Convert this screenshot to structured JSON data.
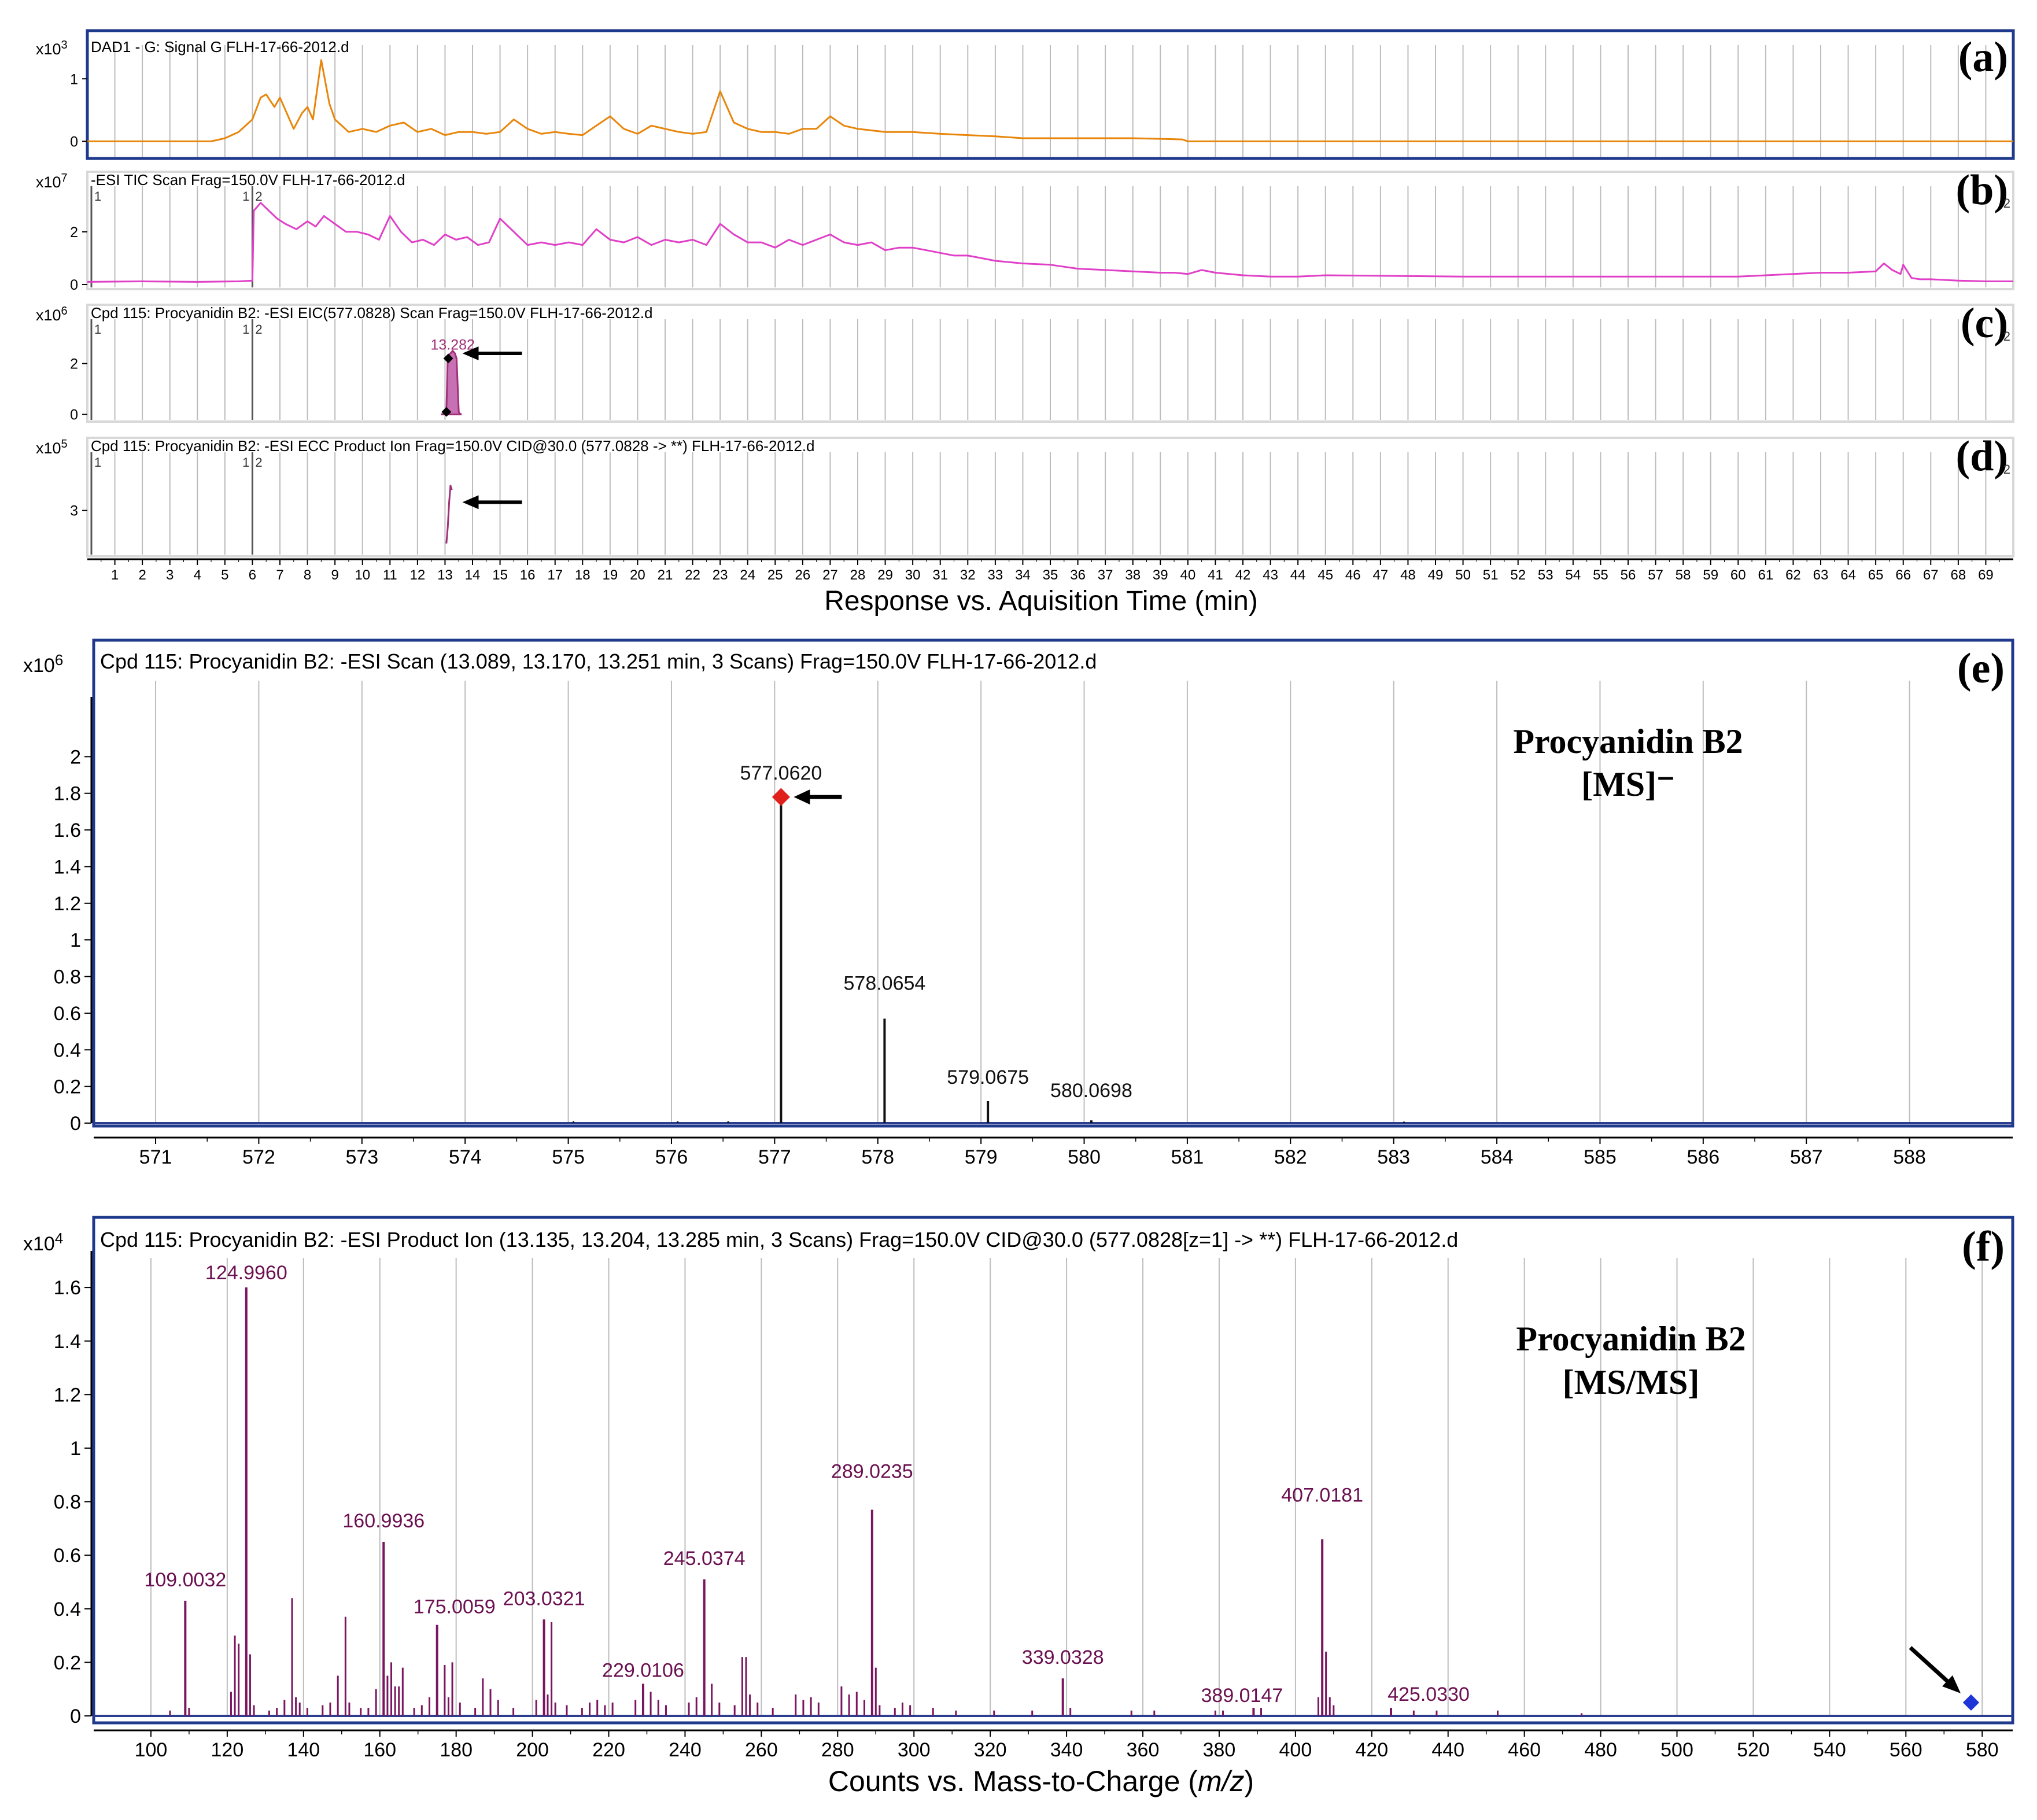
{
  "colors": {
    "frame": "#1f3a8c",
    "grid": "#bdbdbd",
    "dad": "#e8860c",
    "tic": "#e040c8",
    "eic": "#a0307a",
    "ms": "#111111",
    "msms": "#7a1660",
    "label_ms": "#111111",
    "label_msms": "#6b1050",
    "marker_red": "#e0201a",
    "marker_blue": "#1f35d8",
    "arrow": "#000000"
  },
  "top_panels": {
    "xlabel": "Response vs. Aquisition Time (min)",
    "xticks": [
      1,
      2,
      3,
      4,
      5,
      6,
      7,
      8,
      9,
      10,
      11,
      12,
      13,
      14,
      15,
      16,
      17,
      18,
      19,
      20,
      21,
      22,
      23,
      24,
      25,
      26,
      27,
      28,
      29,
      30,
      31,
      32,
      33,
      34,
      35,
      36,
      37,
      38,
      39,
      40,
      41,
      42,
      43,
      44,
      45,
      46,
      47,
      48,
      49,
      50,
      51,
      52,
      53,
      54,
      55,
      56,
      57,
      58,
      59,
      60,
      61,
      62,
      63,
      64,
      65,
      66,
      67,
      68,
      69
    ],
    "xlim": [
      0,
      70
    ]
  },
  "chart_data": [
    {
      "panel": "(a)",
      "type": "line",
      "title": "DAD1 - G: Signal G FLH-17-66-2012.d",
      "scale_base": "x10",
      "scale_exp": "3",
      "yticks": [
        "1",
        "0"
      ],
      "ylim": [
        -0.2,
        1.4
      ],
      "x": [
        0,
        4.5,
        5,
        5.5,
        6,
        6.3,
        6.5,
        6.8,
        7,
        7.2,
        7.5,
        7.8,
        8,
        8.2,
        8.5,
        8.8,
        9,
        9.5,
        10,
        10.5,
        11,
        11.5,
        12,
        12.5,
        13,
        13.5,
        14,
        14.5,
        15,
        15.5,
        16,
        16.5,
        17,
        17.5,
        18,
        18.5,
        19,
        19.5,
        20,
        20.5,
        21,
        21.5,
        22,
        22.5,
        23,
        23.5,
        24,
        24.5,
        25,
        25.5,
        26,
        26.5,
        27,
        27.5,
        28,
        29,
        30,
        31,
        32,
        33,
        34,
        35,
        36,
        37,
        38,
        39,
        39.8,
        40,
        45,
        50,
        60,
        70
      ],
      "values": [
        0,
        0,
        0.05,
        0.15,
        0.35,
        0.7,
        0.75,
        0.55,
        0.7,
        0.5,
        0.2,
        0.45,
        0.55,
        0.35,
        1.3,
        0.6,
        0.35,
        0.15,
        0.2,
        0.15,
        0.25,
        0.3,
        0.15,
        0.2,
        0.1,
        0.15,
        0.15,
        0.12,
        0.15,
        0.35,
        0.2,
        0.12,
        0.15,
        0.12,
        0.1,
        0.25,
        0.4,
        0.2,
        0.12,
        0.25,
        0.2,
        0.15,
        0.12,
        0.15,
        0.8,
        0.3,
        0.2,
        0.15,
        0.15,
        0.12,
        0.2,
        0.2,
        0.4,
        0.25,
        0.2,
        0.15,
        0.15,
        0.12,
        0.1,
        0.08,
        0.05,
        0.05,
        0.05,
        0.05,
        0.05,
        0.04,
        0.03,
        0,
        0,
        0,
        0,
        0
      ]
    },
    {
      "panel": "(b)",
      "type": "line",
      "title": "-ESI TIC Scan Frag=150.0V FLH-17-66-2012.d",
      "scale_base": "x10",
      "scale_exp": "7",
      "yticks": [
        "2",
        "0"
      ],
      "ylim": [
        0,
        3.4
      ],
      "segment_marks": [
        "1",
        "1",
        "2",
        "2"
      ],
      "x": [
        0,
        2,
        4,
        5.5,
        6,
        6.05,
        6.3,
        6.6,
        6.9,
        7.2,
        7.6,
        8,
        8.3,
        8.6,
        9,
        9.4,
        9.8,
        10.2,
        10.6,
        11,
        11.4,
        11.8,
        12.2,
        12.6,
        13,
        13.4,
        13.8,
        14.2,
        14.6,
        15,
        15.5,
        16,
        16.5,
        17,
        17.5,
        18,
        18.5,
        19,
        19.5,
        20,
        20.5,
        21,
        21.5,
        22,
        22.5,
        23,
        23.5,
        24,
        24.5,
        25,
        25.5,
        26,
        26.5,
        27,
        27.5,
        28,
        28.5,
        29,
        29.5,
        30,
        30.5,
        31,
        31.5,
        32,
        32.5,
        33,
        34,
        35,
        36,
        37,
        38,
        39,
        39.5,
        40,
        40.5,
        41,
        42,
        43,
        44,
        45,
        50,
        55,
        60,
        62,
        63,
        64,
        65,
        65.3,
        65.6,
        65.9,
        66,
        66.3,
        66.6,
        67,
        68,
        69,
        70
      ],
      "values": [
        0.1,
        0.12,
        0.1,
        0.12,
        0.15,
        2.8,
        3.1,
        2.8,
        2.5,
        2.3,
        2.1,
        2.4,
        2.2,
        2.6,
        2.3,
        2.0,
        2.0,
        1.9,
        1.7,
        2.6,
        2.0,
        1.6,
        1.7,
        1.5,
        1.9,
        1.7,
        1.8,
        1.5,
        1.6,
        2.5,
        2.0,
        1.5,
        1.6,
        1.5,
        1.6,
        1.5,
        2.1,
        1.7,
        1.6,
        1.8,
        1.5,
        1.7,
        1.6,
        1.7,
        1.5,
        2.3,
        1.9,
        1.6,
        1.6,
        1.4,
        1.7,
        1.5,
        1.7,
        1.9,
        1.6,
        1.5,
        1.6,
        1.3,
        1.4,
        1.4,
        1.3,
        1.2,
        1.1,
        1.1,
        1.0,
        0.9,
        0.8,
        0.75,
        0.6,
        0.55,
        0.5,
        0.45,
        0.45,
        0.4,
        0.55,
        0.45,
        0.35,
        0.3,
        0.3,
        0.35,
        0.3,
        0.3,
        0.3,
        0.4,
        0.45,
        0.45,
        0.5,
        0.8,
        0.55,
        0.4,
        0.75,
        0.25,
        0.2,
        0.2,
        0.15,
        0.12,
        0.12
      ]
    },
    {
      "panel": "(c)",
      "type": "line",
      "title": "Cpd 115: Procyanidin B2: -ESI EIC(577.0828) Scan Frag=150.0V FLH-17-66-2012.d",
      "scale_base": "x10",
      "scale_exp": "6",
      "yticks": [
        "2",
        "0"
      ],
      "ylim": [
        -0.1,
        3.4
      ],
      "segment_marks": [
        "1",
        "1",
        "2",
        "2"
      ],
      "peak_label": "13.282",
      "x": [
        12.85,
        12.95,
        13.05,
        13.1,
        13.2,
        13.28,
        13.36,
        13.42,
        13.5,
        13.55,
        13.6
      ],
      "values": [
        0,
        0.02,
        0.1,
        2.3,
        2.4,
        2.5,
        2.4,
        2.2,
        0.1,
        0.02,
        0
      ]
    },
    {
      "panel": "(d)",
      "type": "line",
      "title": "Cpd 115: Procyanidin B2: -ESI ECC Product Ion Frag=150.0V CID@30.0 (577.0828 -> **) FLH-17-66-2012.d",
      "scale_base": "x10",
      "scale_exp": "5",
      "yticks": [
        "3"
      ],
      "ylim": [
        2.0,
        4.2
      ],
      "segment_marks": [
        "1",
        "1",
        "2",
        "2"
      ],
      "x": [
        13.05,
        13.1,
        13.15,
        13.2,
        13.25
      ],
      "values": [
        2.2,
        2.6,
        3.2,
        3.6,
        3.5
      ]
    },
    {
      "panel": "(e)",
      "type": "bar",
      "title": "Cpd 115: Procyanidin B2: -ESI Scan (13.089, 13.170, 13.251 min, 3 Scans) Frag=150.0V FLH-17-66-2012.d",
      "scale_base": "x10",
      "scale_exp": "6",
      "annotation": [
        "Procyanidin B2",
        "[MS]⁻"
      ],
      "xlim": [
        570.4,
        589
      ],
      "ylim": [
        0,
        2.2
      ],
      "xticks": [
        571,
        572,
        573,
        574,
        575,
        576,
        577,
        578,
        579,
        580,
        581,
        582,
        583,
        584,
        585,
        586,
        587,
        588
      ],
      "yticks": [
        0,
        0.2,
        0.4,
        0.6,
        0.8,
        1,
        1.2,
        1.4,
        1.6,
        1.8,
        2
      ],
      "ytick_labels": [
        "0",
        "0.2",
        "0.4",
        "0.6",
        "0.8",
        "1",
        "1.2",
        "1.4",
        "1.6",
        "1.8",
        "2"
      ],
      "peaks": [
        {
          "mz": 577.062,
          "label": "577.0620",
          "value": 1.78
        },
        {
          "mz": 578.0654,
          "label": "578.0654",
          "value": 0.57
        },
        {
          "mz": 579.0675,
          "label": "579.0675",
          "value": 0.12
        },
        {
          "mz": 580.0698,
          "label": "580.0698",
          "value": 0.015
        }
      ],
      "minor_peaks": [
        {
          "mz": 575.05,
          "value": 0.01
        },
        {
          "mz": 576.06,
          "value": 0.01
        },
        {
          "mz": 576.55,
          "value": 0.01
        },
        {
          "mz": 583.1,
          "value": 0.008
        }
      ]
    },
    {
      "panel": "(f)",
      "type": "bar",
      "title": "Cpd 115: Procyanidin B2: -ESI Product Ion (13.135, 13.204, 13.285 min, 3 Scans) Frag=150.0V CID@30.0 (577.0828[z=1] -> **) FLH-17-66-2012.d",
      "scale_base": "x10",
      "scale_exp": "4",
      "annotation": [
        "Procyanidin B2",
        "[MS/MS]"
      ],
      "xlabel_main": "Counts vs. Mass-to-Charge (",
      "xlabel_italic": "m/z",
      "xlabel_end": ")",
      "xlim": [
        85,
        588
      ],
      "ylim": [
        0,
        1.65
      ],
      "xticks": [
        100,
        120,
        140,
        160,
        180,
        200,
        220,
        240,
        260,
        280,
        300,
        320,
        340,
        360,
        380,
        400,
        420,
        440,
        460,
        480,
        500,
        520,
        540,
        560,
        580
      ],
      "yticks": [
        0,
        0.2,
        0.4,
        0.6,
        0.8,
        1,
        1.2,
        1.4,
        1.6
      ],
      "ytick_labels": [
        "0",
        "0.2",
        "0.4",
        "0.6",
        "0.8",
        "1",
        "1.2",
        "1.4",
        "1.6"
      ],
      "peaks": [
        {
          "mz": 109.0032,
          "label": "109.0032",
          "value": 0.43
        },
        {
          "mz": 124.996,
          "label": "124.9960",
          "value": 1.6
        },
        {
          "mz": 160.9936,
          "label": "160.9936",
          "value": 0.65
        },
        {
          "mz": 175.0059,
          "label": "175.0059",
          "value": 0.34
        },
        {
          "mz": 203.0321,
          "label": "203.0321",
          "value": 0.36
        },
        {
          "mz": 229.0106,
          "label": "229.0106",
          "value": 0.12
        },
        {
          "mz": 245.0374,
          "label": "245.0374",
          "value": 0.51
        },
        {
          "mz": 289.0235,
          "label": "289.0235",
          "value": 0.77
        },
        {
          "mz": 339.0328,
          "label": "339.0328",
          "value": 0.14
        },
        {
          "mz": 389.0147,
          "label": "389.0147",
          "value": 0.03
        },
        {
          "mz": 407.0181,
          "label": "407.0181",
          "value": 0.66
        },
        {
          "mz": 425.033,
          "label": "425.0330",
          "value": 0.03
        }
      ],
      "minor_peaks": [
        {
          "mz": 105,
          "value": 0.02
        },
        {
          "mz": 110,
          "value": 0.03
        },
        {
          "mz": 121,
          "value": 0.09
        },
        {
          "mz": 122,
          "value": 0.3
        },
        {
          "mz": 123,
          "value": 0.27
        },
        {
          "mz": 126,
          "value": 0.23
        },
        {
          "mz": 127,
          "value": 0.04
        },
        {
          "mz": 131,
          "value": 0.02
        },
        {
          "mz": 133,
          "value": 0.03
        },
        {
          "mz": 135,
          "value": 0.06
        },
        {
          "mz": 137,
          "value": 0.44
        },
        {
          "mz": 138,
          "value": 0.07
        },
        {
          "mz": 139,
          "value": 0.05
        },
        {
          "mz": 141,
          "value": 0.03
        },
        {
          "mz": 145,
          "value": 0.04
        },
        {
          "mz": 147,
          "value": 0.05
        },
        {
          "mz": 149,
          "value": 0.15
        },
        {
          "mz": 151,
          "value": 0.37
        },
        {
          "mz": 152,
          "value": 0.05
        },
        {
          "mz": 155,
          "value": 0.03
        },
        {
          "mz": 157,
          "value": 0.03
        },
        {
          "mz": 159,
          "value": 0.1
        },
        {
          "mz": 162,
          "value": 0.15
        },
        {
          "mz": 163,
          "value": 0.2
        },
        {
          "mz": 164,
          "value": 0.11
        },
        {
          "mz": 165,
          "value": 0.11
        },
        {
          "mz": 166,
          "value": 0.18
        },
        {
          "mz": 169,
          "value": 0.03
        },
        {
          "mz": 171,
          "value": 0.04
        },
        {
          "mz": 173,
          "value": 0.07
        },
        {
          "mz": 177,
          "value": 0.19
        },
        {
          "mz": 178,
          "value": 0.07
        },
        {
          "mz": 179,
          "value": 0.2
        },
        {
          "mz": 181,
          "value": 0.05
        },
        {
          "mz": 185,
          "value": 0.03
        },
        {
          "mz": 187,
          "value": 0.14
        },
        {
          "mz": 189,
          "value": 0.1
        },
        {
          "mz": 191,
          "value": 0.06
        },
        {
          "mz": 195,
          "value": 0.03
        },
        {
          "mz": 201,
          "value": 0.06
        },
        {
          "mz": 204,
          "value": 0.08
        },
        {
          "mz": 205,
          "value": 0.35
        },
        {
          "mz": 206,
          "value": 0.05
        },
        {
          "mz": 209,
          "value": 0.04
        },
        {
          "mz": 213,
          "value": 0.03
        },
        {
          "mz": 215,
          "value": 0.05
        },
        {
          "mz": 217,
          "value": 0.06
        },
        {
          "mz": 219,
          "value": 0.04
        },
        {
          "mz": 221,
          "value": 0.05
        },
        {
          "mz": 227,
          "value": 0.06
        },
        {
          "mz": 231,
          "value": 0.09
        },
        {
          "mz": 233,
          "value": 0.06
        },
        {
          "mz": 235,
          "value": 0.04
        },
        {
          "mz": 241,
          "value": 0.05
        },
        {
          "mz": 243,
          "value": 0.07
        },
        {
          "mz": 247,
          "value": 0.12
        },
        {
          "mz": 249,
          "value": 0.05
        },
        {
          "mz": 253,
          "value": 0.04
        },
        {
          "mz": 255,
          "value": 0.22
        },
        {
          "mz": 256,
          "value": 0.22
        },
        {
          "mz": 257,
          "value": 0.08
        },
        {
          "mz": 259,
          "value": 0.05
        },
        {
          "mz": 263,
          "value": 0.03
        },
        {
          "mz": 269,
          "value": 0.08
        },
        {
          "mz": 271,
          "value": 0.06
        },
        {
          "mz": 273,
          "value": 0.07
        },
        {
          "mz": 275,
          "value": 0.05
        },
        {
          "mz": 281,
          "value": 0.11
        },
        {
          "mz": 283,
          "value": 0.08
        },
        {
          "mz": 285,
          "value": 0.09
        },
        {
          "mz": 287,
          "value": 0.06
        },
        {
          "mz": 290,
          "value": 0.18
        },
        {
          "mz": 291,
          "value": 0.04
        },
        {
          "mz": 295,
          "value": 0.03
        },
        {
          "mz": 297,
          "value": 0.05
        },
        {
          "mz": 299,
          "value": 0.04
        },
        {
          "mz": 305,
          "value": 0.03
        },
        {
          "mz": 311,
          "value": 0.02
        },
        {
          "mz": 321,
          "value": 0.02
        },
        {
          "mz": 331,
          "value": 0.02
        },
        {
          "mz": 341,
          "value": 0.03
        },
        {
          "mz": 357,
          "value": 0.02
        },
        {
          "mz": 363,
          "value": 0.02
        },
        {
          "mz": 379,
          "value": 0.02
        },
        {
          "mz": 381,
          "value": 0.02
        },
        {
          "mz": 391,
          "value": 0.03
        },
        {
          "mz": 406,
          "value": 0.07
        },
        {
          "mz": 408,
          "value": 0.24
        },
        {
          "mz": 409,
          "value": 0.07
        },
        {
          "mz": 410,
          "value": 0.04
        },
        {
          "mz": 431,
          "value": 0.02
        },
        {
          "mz": 437,
          "value": 0.02
        },
        {
          "mz": 453,
          "value": 0.02
        },
        {
          "mz": 475,
          "value": 0.01
        }
      ],
      "precursor_marker": 577.08
    }
  ]
}
